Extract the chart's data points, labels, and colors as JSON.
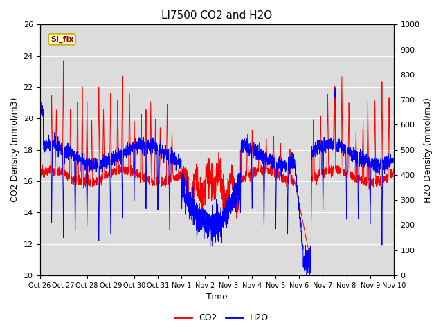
{
  "title": "LI7500 CO2 and H2O",
  "xlabel": "Time",
  "ylabel_left": "CO2 Density (mmol/m3)",
  "ylabel_right": "H2O Density (mmol/m3)",
  "ylim_left": [
    10,
    26
  ],
  "ylim_right": [
    0,
    1000
  ],
  "yticks_left": [
    10,
    12,
    14,
    16,
    18,
    20,
    22,
    24,
    26
  ],
  "yticks_right": [
    0,
    100,
    200,
    300,
    400,
    500,
    600,
    700,
    800,
    900,
    1000
  ],
  "xtick_labels": [
    "Oct 26",
    "Oct 27",
    "Oct 28",
    "Oct 29",
    "Oct 30",
    "Oct 31",
    "Nov 1",
    "Nov 2",
    "Nov 3",
    "Nov 4",
    "Nov 5",
    "Nov 6",
    "Nov 7",
    "Nov 8",
    "Nov 9",
    "Nov 10"
  ],
  "annotation_text": "SI_flx",
  "co2_color": "#FF0000",
  "h2o_color": "#0000FF",
  "background_color": "#DCDCDC",
  "outer_background": "#FFFFFF",
  "grid_color": "#FFFFFF",
  "title_fontsize": 11,
  "axis_label_fontsize": 9,
  "tick_fontsize": 8,
  "legend_fontsize": 9
}
